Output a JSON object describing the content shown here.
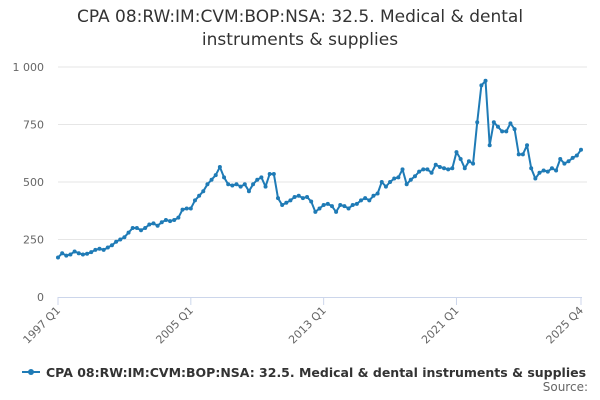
{
  "title_line1": "CPA 08:RW:IM:CVM:BOP:NSA: 32.5. Medical & dental",
  "title_line2": "instruments & supplies",
  "source_label": "Source:",
  "colors": {
    "series": "#1f7bb6",
    "grid": "#e6e6e6",
    "axis": "#ccd6eb"
  },
  "chart_data": {
    "type": "line",
    "title": "CPA 08:RW:IM:CVM:BOP:NSA: 32.5. Medical & dental instruments & supplies",
    "xlabel": "",
    "ylabel": "",
    "ylim": [
      0,
      1000
    ],
    "yticks": [
      0,
      250,
      500,
      750,
      1000
    ],
    "ytick_labels": [
      "0",
      "250",
      "500",
      "750",
      "1 000"
    ],
    "xtick_labels": [
      "1997 Q1",
      "2005 Q1",
      "2013 Q1",
      "2021 Q1",
      "2025 Q4"
    ],
    "grid": true,
    "legend": "bottom",
    "x_start": "1997 Q1",
    "x_end": "2025 Q4",
    "series": [
      {
        "name": "CPA 08:RW:IM:CVM:BOP:NSA: 32.5. Medical & dental instruments & supplies",
        "values": [
          172,
          190,
          180,
          185,
          198,
          190,
          185,
          188,
          195,
          205,
          210,
          205,
          215,
          225,
          240,
          250,
          260,
          280,
          300,
          300,
          290,
          300,
          315,
          320,
          310,
          325,
          335,
          330,
          335,
          345,
          380,
          385,
          385,
          420,
          440,
          460,
          490,
          510,
          530,
          565,
          520,
          490,
          485,
          490,
          480,
          490,
          460,
          490,
          510,
          520,
          480,
          535,
          535,
          430,
          400,
          410,
          420,
          435,
          440,
          430,
          435,
          415,
          370,
          385,
          400,
          405,
          395,
          370,
          400,
          395,
          385,
          400,
          405,
          420,
          430,
          420,
          440,
          450,
          500,
          480,
          500,
          515,
          520,
          555,
          490,
          510,
          525,
          545,
          555,
          555,
          540,
          575,
          565,
          560,
          555,
          560,
          630,
          600,
          560,
          590,
          580,
          760,
          920,
          940,
          660,
          760,
          740,
          720,
          720,
          755,
          730,
          620,
          620,
          660,
          560,
          515,
          540,
          550,
          545,
          560,
          550,
          600,
          580,
          590,
          605,
          615,
          640
        ]
      }
    ]
  }
}
